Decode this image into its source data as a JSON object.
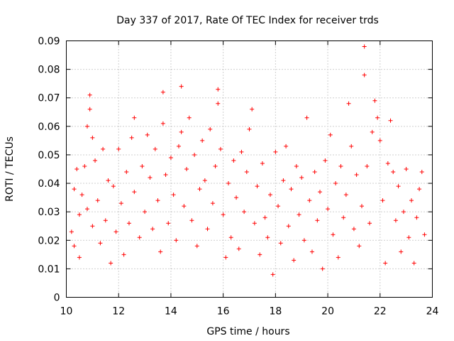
{
  "chart_data": {
    "type": "scatter",
    "title": "Day 337 of 2017, Rate Of TEC Index for receiver trds",
    "xlabel": "GPS time / hours",
    "ylabel": "ROTI / TECUs",
    "xlim": [
      10,
      24
    ],
    "ylim": [
      0,
      0.09
    ],
    "xticks": [
      "10",
      "12",
      "14",
      "16",
      "18",
      "20",
      "22",
      "24"
    ],
    "yticks": [
      "0",
      "0.01",
      "0.02",
      "0.03",
      "0.04",
      "0.05",
      "0.06",
      "0.07",
      "0.08",
      "0.09"
    ],
    "grid": true,
    "marker": "+",
    "colors": {
      "series": "#ff0000",
      "grid": "#a0a0a0",
      "axes": "#000000"
    },
    "series": [
      {
        "x": [
          10.2,
          10.3,
          10.3,
          10.4,
          10.5,
          10.5,
          10.6,
          10.7,
          10.8,
          10.8,
          10.9,
          10.9,
          11.0,
          11.0,
          11.1,
          11.2,
          11.3,
          11.4,
          11.5,
          11.6,
          11.7,
          11.8,
          11.9,
          12.0,
          12.1,
          12.2,
          12.3,
          12.4,
          12.5,
          12.6,
          12.6,
          12.8,
          12.9,
          13.0,
          13.1,
          13.2,
          13.3,
          13.4,
          13.5,
          13.6,
          13.7,
          13.7,
          13.8,
          13.9,
          14.0,
          14.1,
          14.2,
          14.3,
          14.4,
          14.4,
          14.5,
          14.6,
          14.7,
          14.8,
          14.9,
          15.0,
          15.1,
          15.2,
          15.3,
          15.4,
          15.5,
          15.6,
          15.7,
          15.8,
          15.8,
          15.9,
          16.0,
          16.1,
          16.2,
          16.3,
          16.4,
          16.5,
          16.6,
          16.7,
          16.8,
          16.9,
          17.0,
          17.1,
          17.2,
          17.3,
          17.4,
          17.5,
          17.6,
          17.7,
          17.8,
          17.9,
          18.0,
          18.1,
          18.2,
          18.3,
          18.4,
          18.5,
          18.6,
          18.7,
          18.8,
          18.9,
          19.0,
          19.1,
          19.2,
          19.3,
          19.4,
          19.5,
          19.6,
          19.7,
          19.8,
          19.9,
          20.0,
          20.1,
          20.2,
          20.3,
          20.4,
          20.5,
          20.6,
          20.7,
          20.8,
          20.9,
          21.0,
          21.1,
          21.2,
          21.3,
          21.4,
          21.4,
          21.5,
          21.6,
          21.7,
          21.8,
          21.9,
          22.0,
          22.1,
          22.2,
          22.3,
          22.4,
          22.5,
          22.6,
          22.7,
          22.8,
          22.9,
          23.0,
          23.1,
          23.2,
          23.3,
          23.4,
          23.5,
          23.6,
          23.7
        ],
        "y": [
          0.023,
          0.038,
          0.018,
          0.045,
          0.029,
          0.014,
          0.036,
          0.046,
          0.031,
          0.06,
          0.071,
          0.066,
          0.056,
          0.025,
          0.048,
          0.034,
          0.019,
          0.052,
          0.027,
          0.041,
          0.012,
          0.039,
          0.023,
          0.052,
          0.033,
          0.015,
          0.044,
          0.026,
          0.056,
          0.063,
          0.037,
          0.021,
          0.046,
          0.03,
          0.057,
          0.042,
          0.024,
          0.052,
          0.034,
          0.016,
          0.072,
          0.061,
          0.043,
          0.026,
          0.049,
          0.036,
          0.02,
          0.053,
          0.074,
          0.058,
          0.032,
          0.045,
          0.063,
          0.027,
          0.05,
          0.018,
          0.038,
          0.055,
          0.041,
          0.024,
          0.059,
          0.033,
          0.046,
          0.068,
          0.073,
          0.052,
          0.029,
          0.014,
          0.04,
          0.021,
          0.048,
          0.035,
          0.017,
          0.051,
          0.03,
          0.044,
          0.059,
          0.066,
          0.026,
          0.039,
          0.015,
          0.047,
          0.028,
          0.021,
          0.036,
          0.008,
          0.051,
          0.032,
          0.019,
          0.041,
          0.053,
          0.025,
          0.038,
          0.013,
          0.046,
          0.029,
          0.042,
          0.02,
          0.063,
          0.034,
          0.016,
          0.044,
          0.027,
          0.037,
          0.01,
          0.048,
          0.031,
          0.057,
          0.022,
          0.04,
          0.014,
          0.046,
          0.028,
          0.036,
          0.068,
          0.053,
          0.024,
          0.043,
          0.018,
          0.032,
          0.078,
          0.088,
          0.046,
          0.026,
          0.058,
          0.069,
          0.063,
          0.055,
          0.034,
          0.012,
          0.047,
          0.062,
          0.044,
          0.027,
          0.039,
          0.016,
          0.03,
          0.045,
          0.021,
          0.034,
          0.012,
          0.028,
          0.038,
          0.044,
          0.022
        ]
      }
    ]
  }
}
